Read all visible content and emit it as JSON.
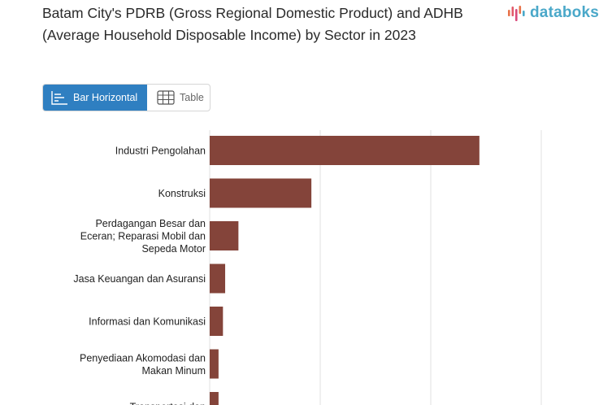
{
  "header": {
    "title": "Batam City's PDRB (Gross Regional Domestic Product) and ADHB (Average Household Disposable Income) by Sector in 2023",
    "logo_text": "databoks",
    "logo_icon": "databoks-bars-logo-icon"
  },
  "view_toggle": {
    "bar_label": "Bar Horizontal",
    "table_label": "Table",
    "active": "bar",
    "bar_icon": "bar-horizontal-icon",
    "table_icon": "table-grid-icon"
  },
  "colors": {
    "bar": "#84443a",
    "accent": "#2f7fc1",
    "grid": "#e2e2e2",
    "logo": "#4aa8c9"
  },
  "chart_data": {
    "type": "bar",
    "orientation": "horizontal",
    "title": "Batam City's PDRB (Gross Regional Domestic Product) and ADHB (Average Household Disposable Income) by Sector in 2023",
    "categories": [
      [
        "Industri Pengolahan"
      ],
      [
        "Konstruksi"
      ],
      [
        "Perdagangan Besar dan",
        "Eceran; Reparasi Mobil dan",
        "Sepeda Motor"
      ],
      [
        "Jasa Keuangan dan Asuransi"
      ],
      [
        "Informasi dan Komunikasi"
      ],
      [
        "Penyediaan Akomodasi dan",
        "Makan Minum"
      ],
      [
        "Transportasi dan"
      ]
    ],
    "values": [
      122,
      46,
      13,
      7,
      6,
      4,
      4
    ],
    "xlim": [
      0,
      150
    ],
    "gridlines_at": [
      0,
      50,
      100,
      150
    ],
    "grid": true,
    "xlabel": "",
    "ylabel": ""
  }
}
